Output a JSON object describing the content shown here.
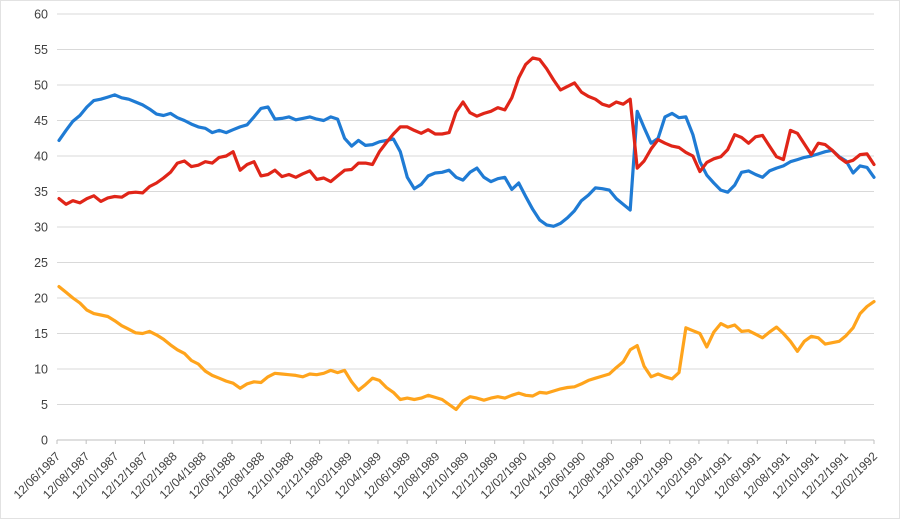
{
  "chart_data": {
    "type": "line",
    "title": "",
    "legend": "none",
    "grid": true,
    "y_axis": {
      "min": 0,
      "max": 60,
      "step": 5,
      "tick_labels": [
        "0",
        "5",
        "10",
        "15",
        "20",
        "25",
        "30",
        "35",
        "40",
        "45",
        "50",
        "55",
        "60"
      ]
    },
    "x_axis": {
      "tick_labels": [
        "12/06/1987",
        "12/08/1987",
        "12/10/1987",
        "12/12/1987",
        "12/02/1988",
        "12/04/1988",
        "12/06/1988",
        "12/08/1988",
        "12/10/1988",
        "12/12/1988",
        "12/02/1989",
        "12/04/1989",
        "12/06/1989",
        "12/08/1989",
        "12/10/1989",
        "12/12/1989",
        "12/02/1990",
        "12/04/1990",
        "12/06/1990",
        "12/08/1990",
        "12/10/1990",
        "12/12/1990",
        "12/02/1991",
        "12/04/1991",
        "12/06/1991",
        "12/08/1991",
        "12/10/1991",
        "12/12/1991",
        "12/02/1992"
      ]
    },
    "series": [
      {
        "name": "blue",
        "color": "#1F7BD4",
        "values": [
          42.2,
          43.6,
          44.9,
          45.7,
          46.9,
          47.8,
          48.0,
          48.3,
          48.6,
          48.2,
          48.0,
          47.6,
          47.2,
          46.6,
          45.9,
          45.7,
          46.0,
          45.4,
          45.0,
          44.5,
          44.1,
          43.9,
          43.3,
          43.6,
          43.3,
          43.7,
          44.1,
          44.4,
          45.5,
          46.7,
          46.9,
          45.2,
          45.3,
          45.5,
          45.1,
          45.3,
          45.5,
          45.2,
          45.0,
          45.5,
          45.2,
          42.5,
          41.4,
          42.2,
          41.5,
          41.6,
          42.0,
          42.2,
          42.4,
          40.6,
          37.0,
          35.4,
          36.0,
          37.2,
          37.6,
          37.7,
          38.0,
          37.0,
          36.6,
          37.7,
          38.3,
          37.0,
          36.4,
          36.8,
          37.0,
          35.3,
          36.2,
          34.3,
          32.5,
          31.0,
          30.3,
          30.1,
          30.5,
          31.3,
          32.3,
          33.7,
          34.5,
          35.5,
          35.4,
          35.2,
          34.0,
          33.2,
          32.4,
          46.3,
          44.0,
          41.8,
          42.5,
          45.5,
          46.0,
          45.4,
          45.5,
          43.0,
          39.2,
          37.3,
          36.2,
          35.2,
          34.9,
          35.9,
          37.7,
          37.9,
          37.4,
          37.0,
          37.9,
          38.3,
          38.6,
          39.2,
          39.5,
          39.8,
          40.0,
          40.3,
          40.6,
          40.8,
          39.9,
          39.3,
          37.6,
          38.6,
          38.4,
          37.0
        ]
      },
      {
        "name": "red",
        "color": "#E02518",
        "values": [
          34.0,
          33.2,
          33.7,
          33.4,
          34.0,
          34.4,
          33.6,
          34.1,
          34.3,
          34.2,
          34.8,
          34.9,
          34.8,
          35.7,
          36.2,
          36.9,
          37.7,
          39.0,
          39.3,
          38.5,
          38.7,
          39.2,
          39.0,
          39.8,
          40.0,
          40.6,
          38.0,
          38.8,
          39.2,
          37.2,
          37.4,
          38.0,
          37.1,
          37.4,
          37.0,
          37.5,
          37.9,
          36.7,
          36.9,
          36.4,
          37.2,
          38.0,
          38.1,
          39.0,
          39.0,
          38.8,
          40.6,
          41.9,
          43.1,
          44.1,
          44.1,
          43.6,
          43.2,
          43.7,
          43.1,
          43.1,
          43.3,
          46.2,
          47.6,
          46.1,
          45.6,
          46.0,
          46.3,
          46.8,
          46.5,
          48.2,
          51.0,
          52.9,
          53.8,
          53.6,
          52.3,
          50.7,
          49.3,
          49.8,
          50.3,
          49.0,
          48.4,
          48.0,
          47.3,
          47.0,
          47.6,
          47.3,
          48.0,
          38.3,
          39.3,
          41.0,
          42.3,
          41.8,
          41.4,
          41.2,
          40.5,
          40.0,
          37.8,
          39.1,
          39.6,
          39.9,
          40.9,
          43.0,
          42.6,
          41.8,
          42.7,
          42.9,
          41.4,
          39.9,
          39.5,
          43.6,
          43.2,
          41.7,
          40.2,
          41.8,
          41.6,
          40.8,
          39.8,
          39.1,
          39.4,
          40.2,
          40.3,
          38.8
        ]
      },
      {
        "name": "orange",
        "color": "#FFA41C",
        "values": [
          21.6,
          20.8,
          20.0,
          19.3,
          18.3,
          17.8,
          17.6,
          17.4,
          16.8,
          16.1,
          15.6,
          15.1,
          15.0,
          15.3,
          14.8,
          14.2,
          13.4,
          12.7,
          12.2,
          11.2,
          10.7,
          9.7,
          9.1,
          8.7,
          8.3,
          8.0,
          7.3,
          7.9,
          8.2,
          8.1,
          8.9,
          9.4,
          9.3,
          9.2,
          9.1,
          8.9,
          9.3,
          9.2,
          9.4,
          9.8,
          9.5,
          9.8,
          8.2,
          7.0,
          7.8,
          8.7,
          8.4,
          7.4,
          6.7,
          5.7,
          5.9,
          5.7,
          5.9,
          6.3,
          6.0,
          5.7,
          5.0,
          4.3,
          5.5,
          6.1,
          5.9,
          5.6,
          5.9,
          6.1,
          5.9,
          6.3,
          6.6,
          6.3,
          6.2,
          6.7,
          6.6,
          6.9,
          7.2,
          7.4,
          7.5,
          7.9,
          8.4,
          8.7,
          9.0,
          9.3,
          10.2,
          11.0,
          12.7,
          13.3,
          10.4,
          8.9,
          9.3,
          8.9,
          8.6,
          9.5,
          15.8,
          15.4,
          15.0,
          13.1,
          15.2,
          16.4,
          15.9,
          16.2,
          15.3,
          15.4,
          14.9,
          14.4,
          15.2,
          15.9,
          15.0,
          13.9,
          12.5,
          13.9,
          14.6,
          14.4,
          13.5,
          13.7,
          13.9,
          14.7,
          15.8,
          17.8,
          18.8,
          19.5
        ]
      }
    ]
  },
  "colors": {
    "gridline": "#D9D9D9",
    "axis": "#BFBFBF",
    "label": "#404040",
    "background": "#FFFFFF"
  }
}
